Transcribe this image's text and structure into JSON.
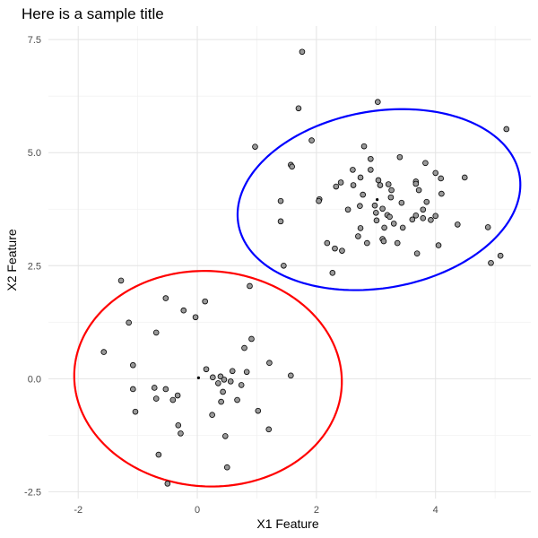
{
  "chart_data": {
    "type": "scatter",
    "title": "Here is a sample title",
    "xlabel": "X1 Feature",
    "ylabel": "X2 Feature",
    "xlim": [
      -2.5,
      5.6
    ],
    "ylim": [
      -2.65,
      7.8
    ],
    "xticks": [
      {
        "value": -2,
        "label": "-2"
      },
      {
        "value": 0,
        "label": "0"
      },
      {
        "value": 2,
        "label": "2"
      },
      {
        "value": 4,
        "label": "4"
      }
    ],
    "yticks": [
      {
        "value": -2.5,
        "label": "-2.5"
      },
      {
        "value": 0,
        "label": "0.0"
      },
      {
        "value": 2.5,
        "label": "2.5"
      },
      {
        "value": 5,
        "label": "5.0"
      },
      {
        "value": 7.5,
        "label": "7.5"
      }
    ],
    "grid": true,
    "point_color": "#999999",
    "point_edge_color": "#000000",
    "center_color": "#000000",
    "series": [
      {
        "points": [
          [
            -1.28,
            2.17
          ],
          [
            -0.53,
            1.78
          ],
          [
            0.13,
            1.71
          ],
          [
            0.88,
            2.05
          ],
          [
            -0.23,
            1.51
          ],
          [
            -0.03,
            1.36
          ],
          [
            -1.15,
            1.24
          ],
          [
            -0.69,
            1.02
          ],
          [
            0.79,
            0.68
          ],
          [
            0.91,
            0.88
          ],
          [
            -1.57,
            0.59
          ],
          [
            -1.08,
            0.3
          ],
          [
            1.21,
            0.35
          ],
          [
            0.15,
            0.21
          ],
          [
            0.59,
            0.17
          ],
          [
            0.83,
            0.15
          ],
          [
            1.57,
            0.07
          ],
          [
            0.26,
            0.03
          ],
          [
            0.39,
            0.05
          ],
          [
            0.45,
            -0.02
          ],
          [
            0.35,
            -0.1
          ],
          [
            0.56,
            -0.06
          ],
          [
            0.74,
            -0.14
          ],
          [
            -0.72,
            -0.2
          ],
          [
            -0.53,
            -0.23
          ],
          [
            -1.08,
            -0.23
          ],
          [
            0.43,
            -0.29
          ],
          [
            -0.33,
            -0.37
          ],
          [
            -0.69,
            -0.44
          ],
          [
            -0.41,
            -0.47
          ],
          [
            0.67,
            -0.47
          ],
          [
            0.4,
            -0.51
          ],
          [
            -1.04,
            -0.73
          ],
          [
            1.02,
            -0.71
          ],
          [
            0.25,
            -0.8
          ],
          [
            -0.32,
            -1.03
          ],
          [
            1.2,
            -1.12
          ],
          [
            -0.28,
            -1.21
          ],
          [
            0.47,
            -1.27
          ],
          [
            -0.65,
            -1.68
          ],
          [
            0.5,
            -1.96
          ],
          [
            -0.5,
            -2.32
          ]
        ],
        "center": [
          0.02,
          0.02
        ],
        "ellipse": {
          "cx": 0.18,
          "cy": 0.0,
          "rx": 2.24,
          "ry": 2.39,
          "rotate": 12
        },
        "ellipse_color": "#ff0000"
      },
      {
        "points": [
          [
            1.76,
            7.23
          ],
          [
            1.7,
            5.98
          ],
          [
            3.03,
            6.12
          ],
          [
            5.19,
            5.52
          ],
          [
            0.97,
            5.13
          ],
          [
            1.92,
            5.27
          ],
          [
            2.8,
            5.14
          ],
          [
            2.91,
            4.86
          ],
          [
            3.4,
            4.9
          ],
          [
            1.57,
            4.73
          ],
          [
            1.59,
            4.69
          ],
          [
            2.91,
            4.62
          ],
          [
            3.83,
            4.77
          ],
          [
            4.0,
            4.55
          ],
          [
            4.09,
            4.43
          ],
          [
            4.49,
            4.45
          ],
          [
            2.61,
            4.62
          ],
          [
            2.74,
            4.45
          ],
          [
            2.41,
            4.34
          ],
          [
            2.62,
            4.28
          ],
          [
            3.21,
            4.3
          ],
          [
            3.04,
            4.39
          ],
          [
            3.07,
            4.28
          ],
          [
            3.67,
            4.36
          ],
          [
            3.67,
            4.31
          ],
          [
            2.33,
            4.25
          ],
          [
            3.26,
            4.17
          ],
          [
            3.72,
            4.17
          ],
          [
            2.05,
            3.97
          ],
          [
            2.04,
            3.93
          ],
          [
            2.78,
            4.07
          ],
          [
            4.1,
            4.09
          ],
          [
            1.4,
            3.93
          ],
          [
            3.25,
            4.01
          ],
          [
            3.43,
            3.89
          ],
          [
            3.85,
            3.91
          ],
          [
            2.73,
            3.82
          ],
          [
            2.53,
            3.74
          ],
          [
            3.79,
            3.74
          ],
          [
            2.98,
            3.83
          ],
          [
            3.11,
            3.76
          ],
          [
            3.0,
            3.67
          ],
          [
            3.19,
            3.62
          ],
          [
            3.23,
            3.58
          ],
          [
            3.67,
            3.61
          ],
          [
            3.79,
            3.55
          ],
          [
            3.61,
            3.52
          ],
          [
            3.92,
            3.51
          ],
          [
            3.01,
            3.5
          ],
          [
            3.3,
            3.43
          ],
          [
            3.14,
            3.34
          ],
          [
            2.74,
            3.33
          ],
          [
            3.45,
            3.34
          ],
          [
            1.4,
            3.48
          ],
          [
            4.0,
            3.6
          ],
          [
            4.37,
            3.41
          ],
          [
            4.88,
            3.35
          ],
          [
            2.7,
            3.15
          ],
          [
            3.11,
            3.09
          ],
          [
            3.13,
            3.04
          ],
          [
            2.85,
            3.0
          ],
          [
            2.18,
            3.0
          ],
          [
            3.36,
            3.0
          ],
          [
            2.31,
            2.88
          ],
          [
            2.43,
            2.83
          ],
          [
            4.05,
            2.95
          ],
          [
            3.69,
            2.77
          ],
          [
            5.09,
            2.72
          ],
          [
            1.45,
            2.5
          ],
          [
            4.93,
            2.56
          ],
          [
            2.27,
            2.34
          ]
        ],
        "center": [
          3.02,
          3.96
        ],
        "ellipse": {
          "cx": 3.05,
          "cy": 3.96,
          "rx": 2.44,
          "ry": 1.92,
          "rotate": 22
        },
        "ellipse_color": "#0000ff"
      }
    ]
  }
}
